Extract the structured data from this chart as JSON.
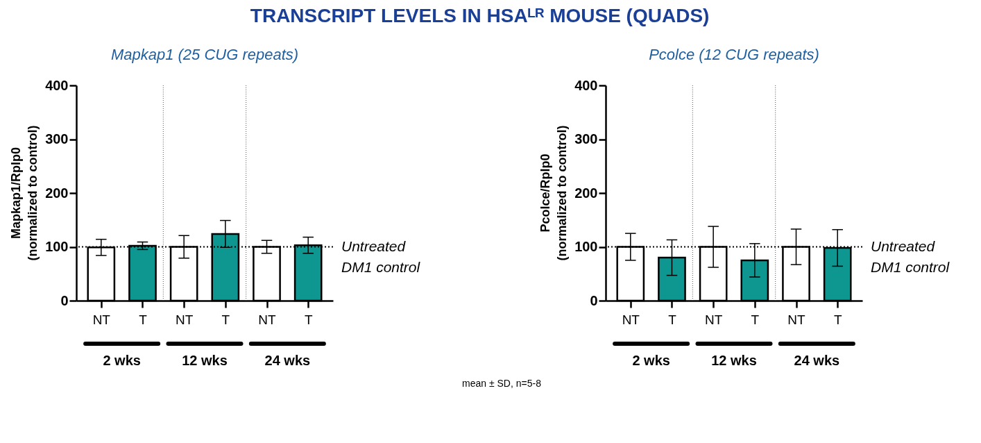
{
  "chart_data": [
    {
      "type": "bar",
      "title": "TRANSCRIPT LEVELS IN HSAᴸᴿ MOUSE (QUADS)",
      "subtitle": "Mapkap1 (25 CUG repeats)",
      "ylabel": "Mapkap1/Rplp0\n(normalized to control)",
      "categories": [
        "NT",
        "T",
        "NT",
        "T",
        "NT",
        "T"
      ],
      "values": [
        99,
        102,
        100,
        124,
        100,
        103
      ],
      "errors": [
        15,
        7,
        21,
        25,
        12,
        15
      ],
      "colors": [
        "#ffffff",
        "#0e9690",
        "#ffffff",
        "#0e9690",
        "#ffffff",
        "#0e9690"
      ],
      "ylim": [
        0,
        400
      ],
      "yticks": [
        0,
        100,
        200,
        300,
        400
      ],
      "ref_lines": [
        {
          "axis": "y",
          "value": 100,
          "label": "Untreated\nDM1 control",
          "line_style": "dotted",
          "color": "#000000"
        }
      ],
      "annotations": [
        "2 wks",
        "12 wks",
        "24 wks"
      ]
    },
    {
      "type": "bar",
      "subtitle": "Pcolce (12 CUG repeats)",
      "ylabel": "Pcolce/Rplp0\n(normalized to control)",
      "categories": [
        "NT",
        "T",
        "NT",
        "T",
        "NT",
        "T"
      ],
      "values": [
        100,
        80,
        100,
        75,
        100,
        98
      ],
      "errors": [
        25,
        33,
        38,
        31,
        33,
        34
      ],
      "colors": [
        "#ffffff",
        "#0e9690",
        "#ffffff",
        "#0e9690",
        "#ffffff",
        "#0e9690"
      ],
      "ylim": [
        0,
        400
      ],
      "yticks": [
        0,
        100,
        200,
        300,
        400
      ],
      "ref_lines": [
        {
          "axis": "y",
          "value": 100,
          "label": "Untreated\nDM1 control",
          "line_style": "dotted",
          "color": "#000000"
        }
      ],
      "annotations": [
        "2 wks",
        "12 wks",
        "24 wks",
        "mean ± SD, n=5-8"
      ]
    }
  ]
}
